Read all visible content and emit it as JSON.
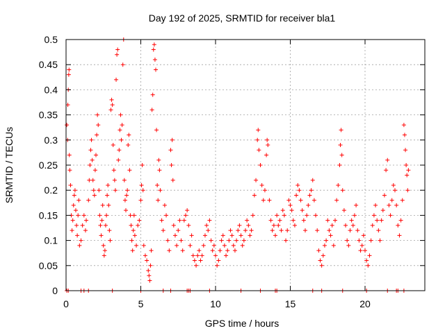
{
  "chart_data": {
    "type": "scatter",
    "title": "Day 192 of 2025, SRMTID for receiver bla1",
    "xlabel": "GPS time / hours",
    "ylabel": "SRMTID / TECUs",
    "xlim": [
      0,
      24.0
    ],
    "ylim": [
      0,
      0.5
    ],
    "xticks": [
      0,
      5,
      10,
      15,
      20
    ],
    "xtick_labels": [
      "0",
      "5",
      "10",
      "15",
      "20"
    ],
    "yticks": [
      0,
      0.05,
      0.1,
      0.15,
      0.2,
      0.25,
      0.3,
      0.35,
      0.4,
      0.45,
      0.5
    ],
    "ytick_labels": [
      "0",
      "0.05",
      "0.1",
      "0.15",
      "0.2",
      "0.25",
      "0.3",
      "0.35",
      "0.4",
      "0.45",
      "0.5"
    ],
    "grid": true,
    "marker": "plus",
    "color": "#ff0000",
    "series": [
      {
        "name": "SRMTID",
        "points": [
          [
            0.05,
            0.33
          ],
          [
            0.1,
            0.3
          ],
          [
            0.12,
            0.37
          ],
          [
            0.15,
            0.4
          ],
          [
            0.18,
            0.43
          ],
          [
            0.2,
            0.44
          ],
          [
            0.22,
            0.27
          ],
          [
            0.25,
            0.24
          ],
          [
            0.3,
            0.21
          ],
          [
            0.35,
            0.15
          ],
          [
            0.4,
            0.12
          ],
          [
            0.45,
            0.14
          ],
          [
            0.5,
            0.17
          ],
          [
            0.55,
            0.19
          ],
          [
            0.6,
            0.2
          ],
          [
            0.65,
            0.16
          ],
          [
            0.7,
            0.13
          ],
          [
            0.75,
            0.11
          ],
          [
            0.8,
            0.15
          ],
          [
            0.85,
            0.18
          ],
          [
            0.9,
            0.09
          ],
          [
            1.0,
            0.1
          ],
          [
            1.1,
            0.13
          ],
          [
            1.2,
            0.15
          ],
          [
            1.3,
            0.12
          ],
          [
            1.35,
            0.14
          ],
          [
            1.5,
            0.18
          ],
          [
            1.55,
            0.22
          ],
          [
            1.6,
            0.25
          ],
          [
            1.65,
            0.28
          ],
          [
            1.7,
            0.3
          ],
          [
            1.75,
            0.26
          ],
          [
            1.8,
            0.22
          ],
          [
            1.85,
            0.2
          ],
          [
            1.9,
            0.19
          ],
          [
            1.95,
            0.24
          ],
          [
            2.0,
            0.27
          ],
          [
            2.05,
            0.31
          ],
          [
            2.1,
            0.35
          ],
          [
            2.15,
            0.33
          ],
          [
            2.2,
            0.2
          ],
          [
            2.25,
            0.15
          ],
          [
            2.3,
            0.13
          ],
          [
            2.35,
            0.11
          ],
          [
            2.4,
            0.14
          ],
          [
            2.45,
            0.17
          ],
          [
            2.5,
            0.09
          ],
          [
            2.55,
            0.07
          ],
          [
            2.6,
            0.08
          ],
          [
            2.65,
            0.13
          ],
          [
            2.7,
            0.15
          ],
          [
            2.75,
            0.19
          ],
          [
            2.8,
            0.21
          ],
          [
            2.85,
            0.17
          ],
          [
            2.9,
            0.12
          ],
          [
            2.95,
            0.1
          ],
          [
            3.0,
            0.36
          ],
          [
            3.05,
            0.38
          ],
          [
            3.1,
            0.37
          ],
          [
            3.15,
            0.29
          ],
          [
            3.2,
            0.24
          ],
          [
            3.25,
            0.22
          ],
          [
            3.3,
            0.2
          ],
          [
            3.35,
            0.42
          ],
          [
            3.4,
            0.47
          ],
          [
            3.45,
            0.48
          ],
          [
            3.5,
            0.26
          ],
          [
            3.55,
            0.28
          ],
          [
            3.6,
            0.32
          ],
          [
            3.65,
            0.35
          ],
          [
            3.7,
            0.3
          ],
          [
            3.75,
            0.33
          ],
          [
            3.8,
            0.45
          ],
          [
            3.85,
            0.5
          ],
          [
            3.9,
            0.22
          ],
          [
            3.95,
            0.18
          ],
          [
            4.0,
            0.16
          ],
          [
            4.05,
            0.19
          ],
          [
            4.1,
            0.2
          ],
          [
            4.15,
            0.29
          ],
          [
            4.2,
            0.31
          ],
          [
            4.25,
            0.24
          ],
          [
            4.3,
            0.15
          ],
          [
            4.35,
            0.13
          ],
          [
            4.4,
            0.1
          ],
          [
            4.45,
            0.08
          ],
          [
            4.5,
            0.12
          ],
          [
            4.55,
            0.15
          ],
          [
            4.6,
            0.11
          ],
          [
            4.7,
            0.09
          ],
          [
            4.8,
            0.13
          ],
          [
            4.9,
            0.14
          ],
          [
            5.0,
            0.18
          ],
          [
            5.05,
            0.21
          ],
          [
            5.1,
            0.25
          ],
          [
            5.15,
            0.2
          ],
          [
            5.2,
            0.09
          ],
          [
            5.3,
            0.07
          ],
          [
            5.4,
            0.06
          ],
          [
            5.5,
            0.04
          ],
          [
            5.55,
            0.03
          ],
          [
            5.6,
            0.02
          ],
          [
            5.65,
            0.05
          ],
          [
            5.7,
            0.08
          ],
          [
            5.75,
            0.36
          ],
          [
            5.8,
            0.39
          ],
          [
            5.85,
            0.48
          ],
          [
            5.9,
            0.49
          ],
          [
            5.95,
            0.46
          ],
          [
            6.0,
            0.44
          ],
          [
            6.05,
            0.32
          ],
          [
            6.1,
            0.21
          ],
          [
            6.15,
            0.18
          ],
          [
            6.2,
            0.26
          ],
          [
            6.25,
            0.24
          ],
          [
            6.3,
            0.2
          ],
          [
            6.4,
            0.14
          ],
          [
            6.5,
            0.12
          ],
          [
            6.6,
            0.17
          ],
          [
            6.7,
            0.15
          ],
          [
            6.8,
            0.1
          ],
          [
            6.9,
            0.08
          ],
          [
            7.0,
            0.28
          ],
          [
            7.05,
            0.25
          ],
          [
            7.1,
            0.3
          ],
          [
            7.15,
            0.22
          ],
          [
            7.2,
            0.13
          ],
          [
            7.3,
            0.11
          ],
          [
            7.4,
            0.09
          ],
          [
            7.5,
            0.12
          ],
          [
            7.6,
            0.14
          ],
          [
            7.7,
            0.1
          ],
          [
            7.8,
            0.08
          ],
          [
            7.9,
            0.14
          ],
          [
            8.0,
            0.15
          ],
          [
            8.1,
            0.16
          ],
          [
            8.2,
            0.13
          ],
          [
            8.3,
            0.09
          ],
          [
            8.4,
            0.11
          ],
          [
            8.5,
            0.07
          ],
          [
            8.6,
            0.06
          ],
          [
            8.7,
            0.05
          ],
          [
            8.8,
            0.07
          ],
          [
            8.9,
            0.08
          ],
          [
            9.0,
            0.06
          ],
          [
            9.1,
            0.07
          ],
          [
            9.2,
            0.09
          ],
          [
            9.3,
            0.11
          ],
          [
            9.4,
            0.13
          ],
          [
            9.5,
            0.12
          ],
          [
            9.6,
            0.14
          ],
          [
            9.7,
            0.1
          ],
          [
            9.8,
            0.08
          ],
          [
            9.9,
            0.09
          ],
          [
            10.0,
            0.07
          ],
          [
            10.1,
            0.05
          ],
          [
            10.2,
            0.06
          ],
          [
            10.3,
            0.08
          ],
          [
            10.4,
            0.1
          ],
          [
            10.5,
            0.11
          ],
          [
            10.6,
            0.09
          ],
          [
            10.7,
            0.07
          ],
          [
            10.8,
            0.08
          ],
          [
            10.9,
            0.1
          ],
          [
            11.0,
            0.12
          ],
          [
            11.1,
            0.11
          ],
          [
            11.2,
            0.09
          ],
          [
            11.3,
            0.08
          ],
          [
            11.4,
            0.1
          ],
          [
            11.5,
            0.12
          ],
          [
            11.6,
            0.13
          ],
          [
            11.7,
            0.11
          ],
          [
            11.8,
            0.09
          ],
          [
            11.9,
            0.1
          ],
          [
            12.0,
            0.12
          ],
          [
            12.1,
            0.14
          ],
          [
            12.2,
            0.13
          ],
          [
            12.3,
            0.11
          ],
          [
            12.4,
            0.12
          ],
          [
            12.5,
            0.15
          ],
          [
            12.6,
            0.19
          ],
          [
            12.7,
            0.22
          ],
          [
            12.8,
            0.3
          ],
          [
            12.85,
            0.32
          ],
          [
            12.9,
            0.28
          ],
          [
            13.0,
            0.25
          ],
          [
            13.1,
            0.21
          ],
          [
            13.2,
            0.18
          ],
          [
            13.3,
            0.2
          ],
          [
            13.4,
            0.27
          ],
          [
            13.45,
            0.3
          ],
          [
            13.5,
            0.29
          ],
          [
            13.6,
            0.18
          ],
          [
            13.7,
            0.14
          ],
          [
            13.8,
            0.12
          ],
          [
            13.9,
            0.13
          ],
          [
            14.0,
            0.11
          ],
          [
            14.1,
            0.15
          ],
          [
            14.2,
            0.13
          ],
          [
            14.3,
            0.14
          ],
          [
            14.4,
            0.12
          ],
          [
            14.5,
            0.16
          ],
          [
            14.6,
            0.15
          ],
          [
            14.7,
            0.1
          ],
          [
            14.8,
            0.12
          ],
          [
            14.9,
            0.18
          ],
          [
            15.0,
            0.17
          ],
          [
            15.1,
            0.16
          ],
          [
            15.2,
            0.14
          ],
          [
            15.3,
            0.13
          ],
          [
            15.4,
            0.19
          ],
          [
            15.5,
            0.21
          ],
          [
            15.6,
            0.2
          ],
          [
            15.7,
            0.18
          ],
          [
            15.8,
            0.16
          ],
          [
            15.9,
            0.14
          ],
          [
            16.0,
            0.12
          ],
          [
            16.1,
            0.15
          ],
          [
            16.2,
            0.17
          ],
          [
            16.3,
            0.19
          ],
          [
            16.4,
            0.2
          ],
          [
            16.5,
            0.22
          ],
          [
            16.6,
            0.18
          ],
          [
            16.7,
            0.15
          ],
          [
            16.8,
            0.12
          ],
          [
            16.9,
            0.08
          ],
          [
            17.0,
            0.06
          ],
          [
            17.1,
            0.05
          ],
          [
            17.2,
            0.07
          ],
          [
            17.3,
            0.09
          ],
          [
            17.4,
            0.1
          ],
          [
            17.5,
            0.14
          ],
          [
            17.6,
            0.12
          ],
          [
            17.7,
            0.11
          ],
          [
            17.8,
            0.13
          ],
          [
            17.9,
            0.09
          ],
          [
            18.0,
            0.14
          ],
          [
            18.1,
            0.18
          ],
          [
            18.2,
            0.21
          ],
          [
            18.3,
            0.25
          ],
          [
            18.35,
            0.29
          ],
          [
            18.4,
            0.32
          ],
          [
            18.45,
            0.27
          ],
          [
            18.5,
            0.2
          ],
          [
            18.6,
            0.16
          ],
          [
            18.7,
            0.13
          ],
          [
            18.8,
            0.1
          ],
          [
            18.9,
            0.09
          ],
          [
            19.0,
            0.12
          ],
          [
            19.1,
            0.14
          ],
          [
            19.2,
            0.13
          ],
          [
            19.3,
            0.15
          ],
          [
            19.4,
            0.17
          ],
          [
            19.5,
            0.12
          ],
          [
            19.6,
            0.1
          ],
          [
            19.7,
            0.08
          ],
          [
            19.8,
            0.09
          ],
          [
            19.9,
            0.11
          ],
          [
            20.0,
            0.08
          ],
          [
            20.1,
            0.06
          ],
          [
            20.2,
            0.05
          ],
          [
            20.3,
            0.07
          ],
          [
            20.4,
            0.1
          ],
          [
            20.5,
            0.13
          ],
          [
            20.6,
            0.15
          ],
          [
            20.7,
            0.17
          ],
          [
            20.8,
            0.14
          ],
          [
            20.9,
            0.12
          ],
          [
            21.0,
            0.1
          ],
          [
            21.1,
            0.14
          ],
          [
            21.2,
            0.16
          ],
          [
            21.3,
            0.19
          ],
          [
            21.4,
            0.24
          ],
          [
            21.5,
            0.26
          ],
          [
            21.6,
            0.17
          ],
          [
            21.7,
            0.15
          ],
          [
            21.8,
            0.18
          ],
          [
            21.9,
            0.21
          ],
          [
            22.0,
            0.2
          ],
          [
            22.1,
            0.17
          ],
          [
            22.2,
            0.13
          ],
          [
            22.3,
            0.11
          ],
          [
            22.4,
            0.14
          ],
          [
            22.5,
            0.18
          ],
          [
            22.6,
            0.33
          ],
          [
            22.65,
            0.31
          ],
          [
            22.7,
            0.28
          ],
          [
            22.75,
            0.25
          ],
          [
            22.8,
            0.23
          ],
          [
            22.85,
            0.2
          ],
          [
            22.9,
            0.24
          ],
          [
            0.05,
            0
          ],
          [
            0.15,
            0
          ],
          [
            1.0,
            0
          ],
          [
            1.2,
            0
          ],
          [
            1.5,
            0
          ],
          [
            3.1,
            0
          ],
          [
            5.0,
            0
          ],
          [
            6.5,
            0
          ],
          [
            7.0,
            0
          ],
          [
            8.1,
            0
          ],
          [
            8.2,
            0
          ],
          [
            8.3,
            0
          ],
          [
            9.6,
            0
          ],
          [
            11.7,
            0
          ],
          [
            13.0,
            0
          ],
          [
            14.0,
            0
          ],
          [
            14.1,
            0
          ],
          [
            16.5,
            0
          ],
          [
            17.1,
            0
          ],
          [
            18.5,
            0
          ],
          [
            20.1,
            0
          ],
          [
            21.5,
            0
          ],
          [
            22.1,
            0
          ],
          [
            22.2,
            0
          ],
          [
            22.6,
            0
          ]
        ]
      }
    ]
  }
}
